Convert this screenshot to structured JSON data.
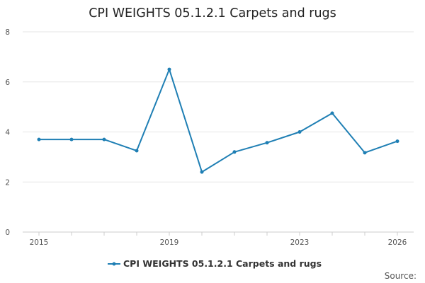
{
  "chart_data": {
    "type": "line",
    "title": "CPI WEIGHTS 05.1.2.1 Carpets and rugs",
    "xlabel": "",
    "ylabel": "",
    "x": [
      2015,
      2016,
      2017,
      2018,
      2019,
      2020,
      2021,
      2022,
      2023,
      2024,
      2025,
      2026
    ],
    "x_tick_labels": [
      "2015",
      "2019",
      "2023",
      "2026"
    ],
    "y_tick_labels": [
      "0",
      "2",
      "4",
      "6",
      "8"
    ],
    "ylim": [
      0,
      8
    ],
    "grid": true,
    "legend_position": "bottom",
    "series": [
      {
        "name": "CPI WEIGHTS 05.1.2.1 Carpets and rugs",
        "color": "#1f7fb4",
        "values": [
          3.7,
          3.7,
          3.7,
          3.25,
          6.5,
          2.4,
          3.2,
          3.57,
          4.0,
          4.75,
          3.17,
          3.63
        ]
      }
    ]
  },
  "footer": {
    "source_label": "Source:"
  }
}
